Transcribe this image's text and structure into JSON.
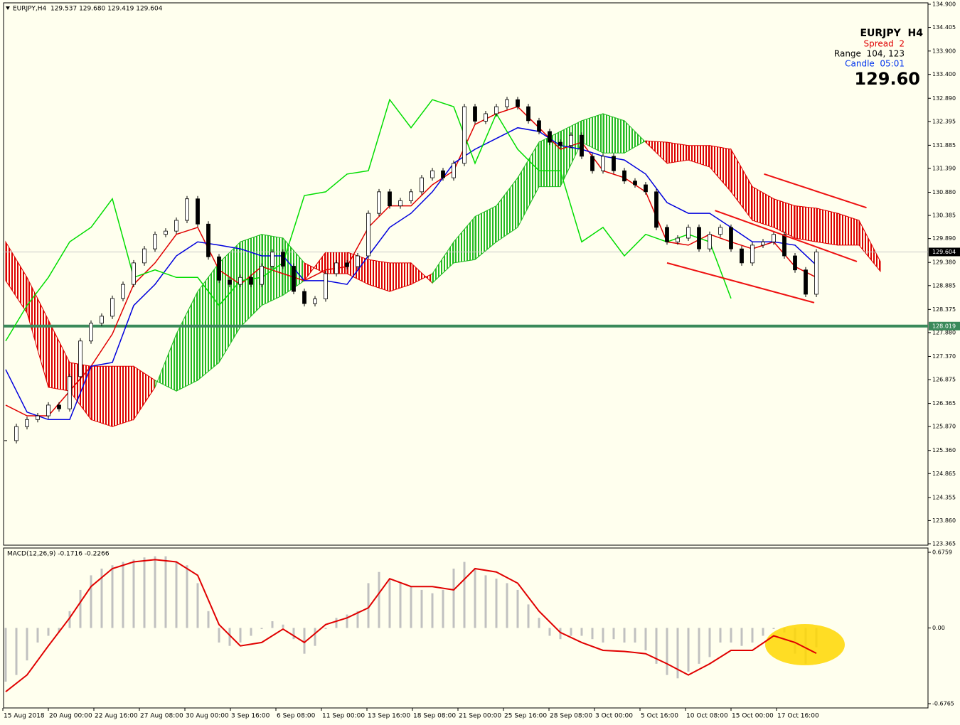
{
  "header": "EURJPY,H4  129.537 129.680 129.419 129.604",
  "info": {
    "symbol": "EURJPY  H4",
    "spread": "Spread  2",
    "range": "Range  104, 123",
    "candle": "Candle  05:01",
    "price": "129.60"
  },
  "x_labels": [
    "15 Aug 2018",
    "20 Aug 00:00",
    "22 Aug 16:00",
    "27 Aug 08:00",
    "30 Aug 00:00",
    "3 Sep 16:00",
    "6 Sep 08:00",
    "11 Sep 00:00",
    "13 Sep 16:00",
    "18 Sep 08:00",
    "21 Sep 00:00",
    "25 Sep 16:00",
    "28 Sep 08:00",
    "3 Oct 00:00",
    "5 Oct 16:00",
    "10 Oct 08:00",
    "15 Oct 00:00",
    "17 Oct 16:00"
  ],
  "chart_data": [
    {
      "type": "candlestick",
      "ylim": [
        123.365,
        134.9
      ],
      "yticks": [
        {
          "value": 134.9,
          "label": "134.900"
        },
        {
          "value": 134.405,
          "label": "134.405"
        },
        {
          "value": 133.9,
          "label": "133.900"
        },
        {
          "value": 133.4,
          "label": "133.400"
        },
        {
          "value": 132.89,
          "label": "132.890"
        },
        {
          "value": 132.395,
          "label": "132.395"
        },
        {
          "value": 131.885,
          "label": "131.885"
        },
        {
          "value": 131.39,
          "label": "131.390"
        },
        {
          "value": 130.88,
          "label": "130.880"
        },
        {
          "value": 130.385,
          "label": "130.385"
        },
        {
          "value": 129.89,
          "label": "129.890"
        },
        {
          "value": 129.38,
          "label": "129.380"
        },
        {
          "value": 128.885,
          "label": "128.885"
        },
        {
          "value": 128.375,
          "label": "128.375"
        },
        {
          "value": 127.88,
          "label": "127.880"
        },
        {
          "value": 127.37,
          "label": "127.370"
        },
        {
          "value": 126.875,
          "label": "126.875"
        },
        {
          "value": 126.365,
          "label": "126.365"
        },
        {
          "value": 125.87,
          "label": "125.870"
        },
        {
          "value": 125.36,
          "label": "125.360"
        },
        {
          "value": 124.865,
          "label": "124.865"
        },
        {
          "value": 124.355,
          "label": "124.355"
        },
        {
          "value": 123.86,
          "label": "123.860"
        },
        {
          "value": 123.365,
          "label": "123.365"
        }
      ],
      "close": [
        125.57,
        125.87,
        126.02,
        126.1,
        126.33,
        126.25,
        126.94,
        127.7,
        128.08,
        128.23,
        128.61,
        128.91,
        129.37,
        129.67,
        129.98,
        130.05,
        130.28,
        130.74,
        130.2,
        129.5,
        129.0,
        128.91,
        129.06,
        128.91,
        129.3,
        129.6,
        129.3,
        128.76,
        128.5,
        128.6,
        129.14,
        129.37,
        129.29,
        129.52,
        130.43,
        130.89,
        130.59,
        130.7,
        130.89,
        131.19,
        131.34,
        131.19,
        131.5,
        132.71,
        132.4,
        132.56,
        132.71,
        132.86,
        132.71,
        132.41,
        132.18,
        131.95,
        131.88,
        132.1,
        131.65,
        131.34,
        131.65,
        131.34,
        131.12,
        131.04,
        130.89,
        130.13,
        129.82,
        129.9,
        130.13,
        129.67,
        129.98,
        130.13,
        129.67,
        129.37,
        129.75,
        129.82,
        129.98,
        129.52,
        129.22,
        128.7,
        129.604
      ],
      "bull_color": "#ffffff",
      "bear_color": "#000000",
      "lines": [
        {
          "color": "#e00000",
          "values": [
            126.33,
            126.1,
            126.1,
            126.63,
            127.16,
            127.85,
            128.91,
            129.37,
            129.98,
            130.13,
            129.22,
            128.91,
            129.29,
            129.14,
            128.99,
            129.22,
            129.29,
            130.13,
            130.59,
            130.59,
            131.04,
            131.34,
            132.33,
            132.56,
            132.71,
            132.26,
            131.8,
            131.95,
            131.34,
            131.19,
            130.89,
            129.82,
            129.75,
            129.98,
            129.82,
            129.67,
            129.82,
            129.29,
            129.06,
            null,
            null,
            null
          ]
        },
        {
          "color": "#0000dd",
          "values": [
            127.09,
            126.18,
            126.02,
            126.02,
            127.16,
            127.24,
            128.46,
            128.91,
            129.52,
            129.82,
            129.75,
            129.67,
            129.52,
            129.52,
            128.99,
            128.99,
            128.91,
            129.52,
            130.13,
            130.43,
            130.89,
            131.5,
            131.8,
            132.03,
            132.26,
            132.18,
            131.88,
            131.8,
            131.65,
            131.57,
            131.27,
            130.66,
            130.43,
            130.43,
            130.13,
            129.82,
            129.82,
            129.75,
            129.32,
            null,
            null,
            null
          ]
        },
        {
          "color": "#00dd00",
          "values": [
            127.7,
            128.46,
            129.06,
            129.82,
            130.13,
            130.74,
            129.06,
            129.22,
            129.06,
            129.06,
            128.46,
            128.99,
            129.06,
            129.37,
            130.81,
            130.89,
            131.27,
            131.34,
            132.86,
            132.26,
            132.86,
            132.71,
            131.5,
            132.56,
            131.8,
            131.34,
            131.34,
            129.82,
            130.13,
            129.52,
            129.98,
            129.82,
            129.98,
            129.82,
            128.61,
            null,
            null,
            null,
            null,
            null,
            null,
            null
          ]
        }
      ],
      "cloud": {
        "bull_color": "#22bb22",
        "bear_color": "#dd0000",
        "span_a": [
          128.99,
          128.3,
          126.71,
          126.63,
          126.02,
          125.87,
          126.02,
          126.71,
          127.85,
          128.76,
          129.37,
          129.82,
          129.98,
          129.9,
          129.37,
          129.14,
          129.14,
          128.91,
          128.76,
          128.91,
          129.14,
          129.82,
          130.36,
          130.59,
          131.19,
          131.95,
          132.18,
          132.41,
          132.56,
          132.41,
          131.95,
          131.5,
          131.57,
          131.42,
          130.89,
          130.28,
          130.13,
          129.9,
          129.82,
          129.75,
          129.75,
          129.19
        ],
        "span_b": [
          129.82,
          129.06,
          128.15,
          127.24,
          127.16,
          127.16,
          127.16,
          126.86,
          126.63,
          126.86,
          127.24,
          128.0,
          128.46,
          128.68,
          128.99,
          129.6,
          129.6,
          129.44,
          129.37,
          129.37,
          128.94,
          129.37,
          129.44,
          129.82,
          130.13,
          131.0,
          131.0,
          131.95,
          131.72,
          131.72,
          131.98,
          131.95,
          131.88,
          131.88,
          131.8,
          131.0,
          130.74,
          130.59,
          130.54,
          130.43,
          130.28,
          129.4
        ]
      },
      "hline": {
        "value": 128.019,
        "color": "#3a8a5a"
      },
      "bid": {
        "value": 129.604,
        "color": "#000000"
      },
      "trendlines": [
        {
          "color": "#ee1111",
          "points": [
            [
              71.1,
              131.27
            ],
            [
              80.7,
              130.55
            ]
          ]
        },
        {
          "color": "#ee1111",
          "points": [
            [
              66.5,
              130.49
            ],
            [
              79.8,
              129.4
            ]
          ]
        },
        {
          "color": "#ee1111",
          "points": [
            [
              62,
              129.37
            ],
            [
              75.8,
              128.52
            ]
          ]
        }
      ]
    },
    {
      "type": "macd",
      "label": "MACD(12,26,9) -0.1716 -0.2266",
      "ylim": [
        -0.6765,
        0.6759
      ],
      "yticks": [
        0.6759,
        {
          "value": 0,
          "label": "0.00"
        },
        -0.6765
      ],
      "hist_color": "#c0c0c0",
      "signal_color": "#e00000",
      "histogram": [
        -0.48,
        -0.42,
        -0.29,
        -0.13,
        -0.07,
        -0.04,
        0.15,
        0.34,
        0.47,
        0.53,
        0.56,
        0.59,
        0.61,
        0.63,
        0.64,
        0.64,
        0.59,
        0.56,
        0.4,
        0.15,
        -0.13,
        -0.16,
        -0.13,
        -0.07,
        -0.01,
        0.06,
        0.03,
        -0.1,
        -0.23,
        -0.16,
        -0.01,
        0.09,
        0.12,
        0.15,
        0.4,
        0.5,
        0.44,
        0.4,
        0.37,
        0.34,
        0.31,
        0.34,
        0.53,
        0.59,
        0.53,
        0.47,
        0.44,
        0.4,
        0.34,
        0.21,
        0.09,
        -0.07,
        -0.1,
        -0.07,
        -0.07,
        -0.1,
        -0.13,
        -0.1,
        -0.13,
        -0.13,
        -0.2,
        -0.32,
        -0.42,
        -0.45,
        -0.39,
        -0.32,
        -0.26,
        -0.13,
        -0.13,
        -0.16,
        -0.13,
        -0.07,
        -0.01,
        -0.04,
        -0.23,
        -0.32,
        -0.1716
      ],
      "signal": [
        -0.57,
        -0.42,
        -0.16,
        0.09,
        0.37,
        0.53,
        0.59,
        0.61,
        0.59,
        0.47,
        0.03,
        -0.16,
        -0.13,
        -0.01,
        -0.13,
        0.03,
        0.09,
        0.18,
        0.44,
        0.37,
        0.37,
        0.34,
        0.53,
        0.5,
        0.4,
        0.15,
        -0.04,
        -0.13,
        -0.2,
        -0.21,
        -0.23,
        -0.32,
        -0.42,
        -0.32,
        -0.2,
        -0.2,
        -0.07,
        -0.13,
        -0.2266,
        null,
        null,
        null
      ]
    }
  ]
}
